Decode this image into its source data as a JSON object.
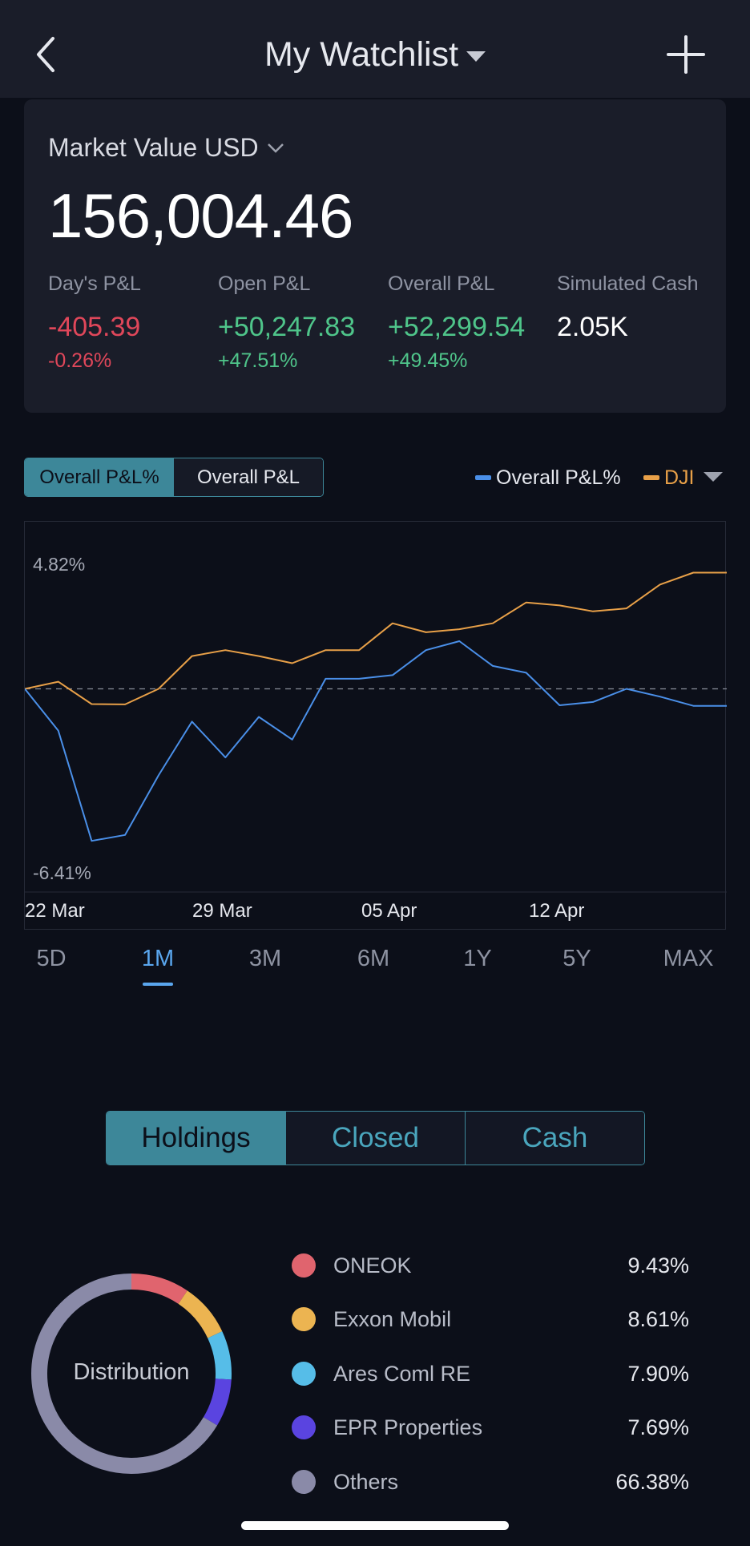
{
  "header": {
    "title": "My Watchlist",
    "back_icon": "chevron-left-icon",
    "add_icon": "plus-icon"
  },
  "summary": {
    "market_value_label": "Market Value USD",
    "market_value": "156,004.46",
    "stats": [
      {
        "label": "Day's P&L",
        "value": "-405.39",
        "pct": "-0.26%",
        "tone": "negative"
      },
      {
        "label": "Open P&L",
        "value": "+50,247.83",
        "pct": "+47.51%",
        "tone": "positive"
      },
      {
        "label": "Overall P&L",
        "value": "+52,299.54",
        "pct": "+49.45%",
        "tone": "positive"
      },
      {
        "label": "Simulated Cash",
        "value": "2.05K",
        "pct": "",
        "tone": "neutral"
      }
    ]
  },
  "chart_toggle": {
    "active": "Overall P&L%",
    "inactive": "Overall P&L"
  },
  "legend": {
    "series_a": "Overall P&L%",
    "series_b": "DJI"
  },
  "colors": {
    "accent": "#3d8799",
    "positive": "#4fc58a",
    "negative": "#e0475a",
    "series_portfolio": "#4a8fe8",
    "series_dji": "#e8a048",
    "range_active": "#5aa6ee"
  },
  "chart_data": {
    "type": "line",
    "x": [
      "22 Mar",
      "23 Mar",
      "24 Mar",
      "25 Mar",
      "26 Mar",
      "29 Mar",
      "30 Mar",
      "31 Mar",
      "01 Apr",
      "02 Apr",
      "05 Apr",
      "06 Apr",
      "07 Apr",
      "08 Apr",
      "09 Apr",
      "12 Apr",
      "13 Apr",
      "14 Apr",
      "15 Apr",
      "16 Apr",
      "19 Apr",
      "20 Apr"
    ],
    "x_tick_labels": [
      "22 Mar",
      "29 Mar",
      "05 Apr",
      "12 Apr"
    ],
    "y_tick_labels": [
      "4.82%",
      "-6.41%"
    ],
    "ylim": [
      -6.41,
      4.82
    ],
    "baseline": 0,
    "series": [
      {
        "name": "Overall P&L%",
        "values": [
          0.0,
          -1.4,
          -5.1,
          -4.9,
          -2.9,
          -1.1,
          -2.3,
          -0.94,
          -1.7,
          0.34,
          0.34,
          0.46,
          1.3,
          1.6,
          0.77,
          0.54,
          -0.55,
          -0.44,
          0.0,
          -0.26,
          -0.57,
          -0.57
        ]
      },
      {
        "name": "DJI",
        "values": [
          0.0,
          0.24,
          -0.51,
          -0.52,
          0.0,
          1.1,
          1.3,
          1.1,
          0.86,
          1.3,
          1.3,
          2.2,
          1.9,
          2.0,
          2.2,
          2.9,
          2.8,
          2.6,
          2.7,
          3.5,
          3.9,
          3.9
        ]
      }
    ]
  },
  "ranges": {
    "items": [
      "5D",
      "1M",
      "3M",
      "6M",
      "1Y",
      "5Y",
      "MAX"
    ],
    "active": "1M"
  },
  "segments": {
    "holdings": "Holdings",
    "closed": "Closed",
    "cash": "Cash",
    "active": "Holdings"
  },
  "distribution": {
    "label": "Distribution",
    "items": [
      {
        "name": "ONEOK",
        "pct": "9.43%",
        "value": 9.43,
        "color": "#e0646e"
      },
      {
        "name": "Exxon Mobil",
        "pct": "8.61%",
        "value": 8.61,
        "color": "#ecb451"
      },
      {
        "name": "Ares Coml RE",
        "pct": "7.90%",
        "value": 7.9,
        "color": "#56bde8"
      },
      {
        "name": "EPR Properties",
        "pct": "7.69%",
        "value": 7.69,
        "color": "#5a44e0"
      },
      {
        "name": "Others",
        "pct": "66.38%",
        "value": 66.38,
        "color": "#8a8aa8"
      }
    ]
  }
}
